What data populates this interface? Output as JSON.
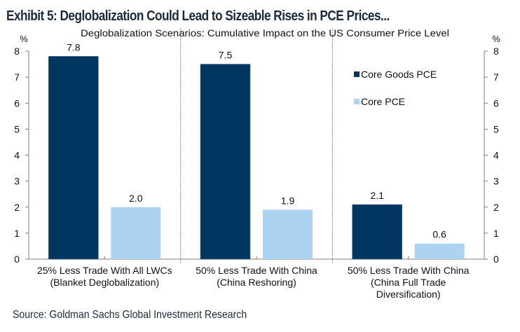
{
  "exhibit_title": "Exhibit 5: Deglobalization Could Lead to Sizeable Rises in PCE Prices...",
  "source": "Source: Goldman Sachs Global Investment Research",
  "chart_data": {
    "type": "bar",
    "title": "Deglobalization Scenarios: Cumulative Impact on the US Consumer Price Level",
    "xlabel": "",
    "ylabel": "%",
    "ylabel_right": "%",
    "ylim": [
      0,
      8
    ],
    "yticks": [
      0,
      1,
      2,
      3,
      4,
      5,
      6,
      7,
      8
    ],
    "grid": false,
    "legend_position": "top-right",
    "categories": [
      [
        "25% Less Trade With All LWCs",
        "(Blanket Deglobalization)"
      ],
      [
        "50% Less Trade With China",
        "(China Reshoring)"
      ],
      [
        "50% Less Trade With China",
        "(China Full Trade",
        "Diversification)"
      ]
    ],
    "series": [
      {
        "name": "Core Goods PCE",
        "color": "#003660",
        "values": [
          7.8,
          7.5,
          2.1
        ],
        "labels": [
          "7.8",
          "7.5",
          "2.1"
        ]
      },
      {
        "name": "Core PCE",
        "color": "#acd3f0",
        "values": [
          2.0,
          1.9,
          0.6
        ],
        "labels": [
          "2.0",
          "1.9",
          "0.6"
        ]
      }
    ]
  }
}
